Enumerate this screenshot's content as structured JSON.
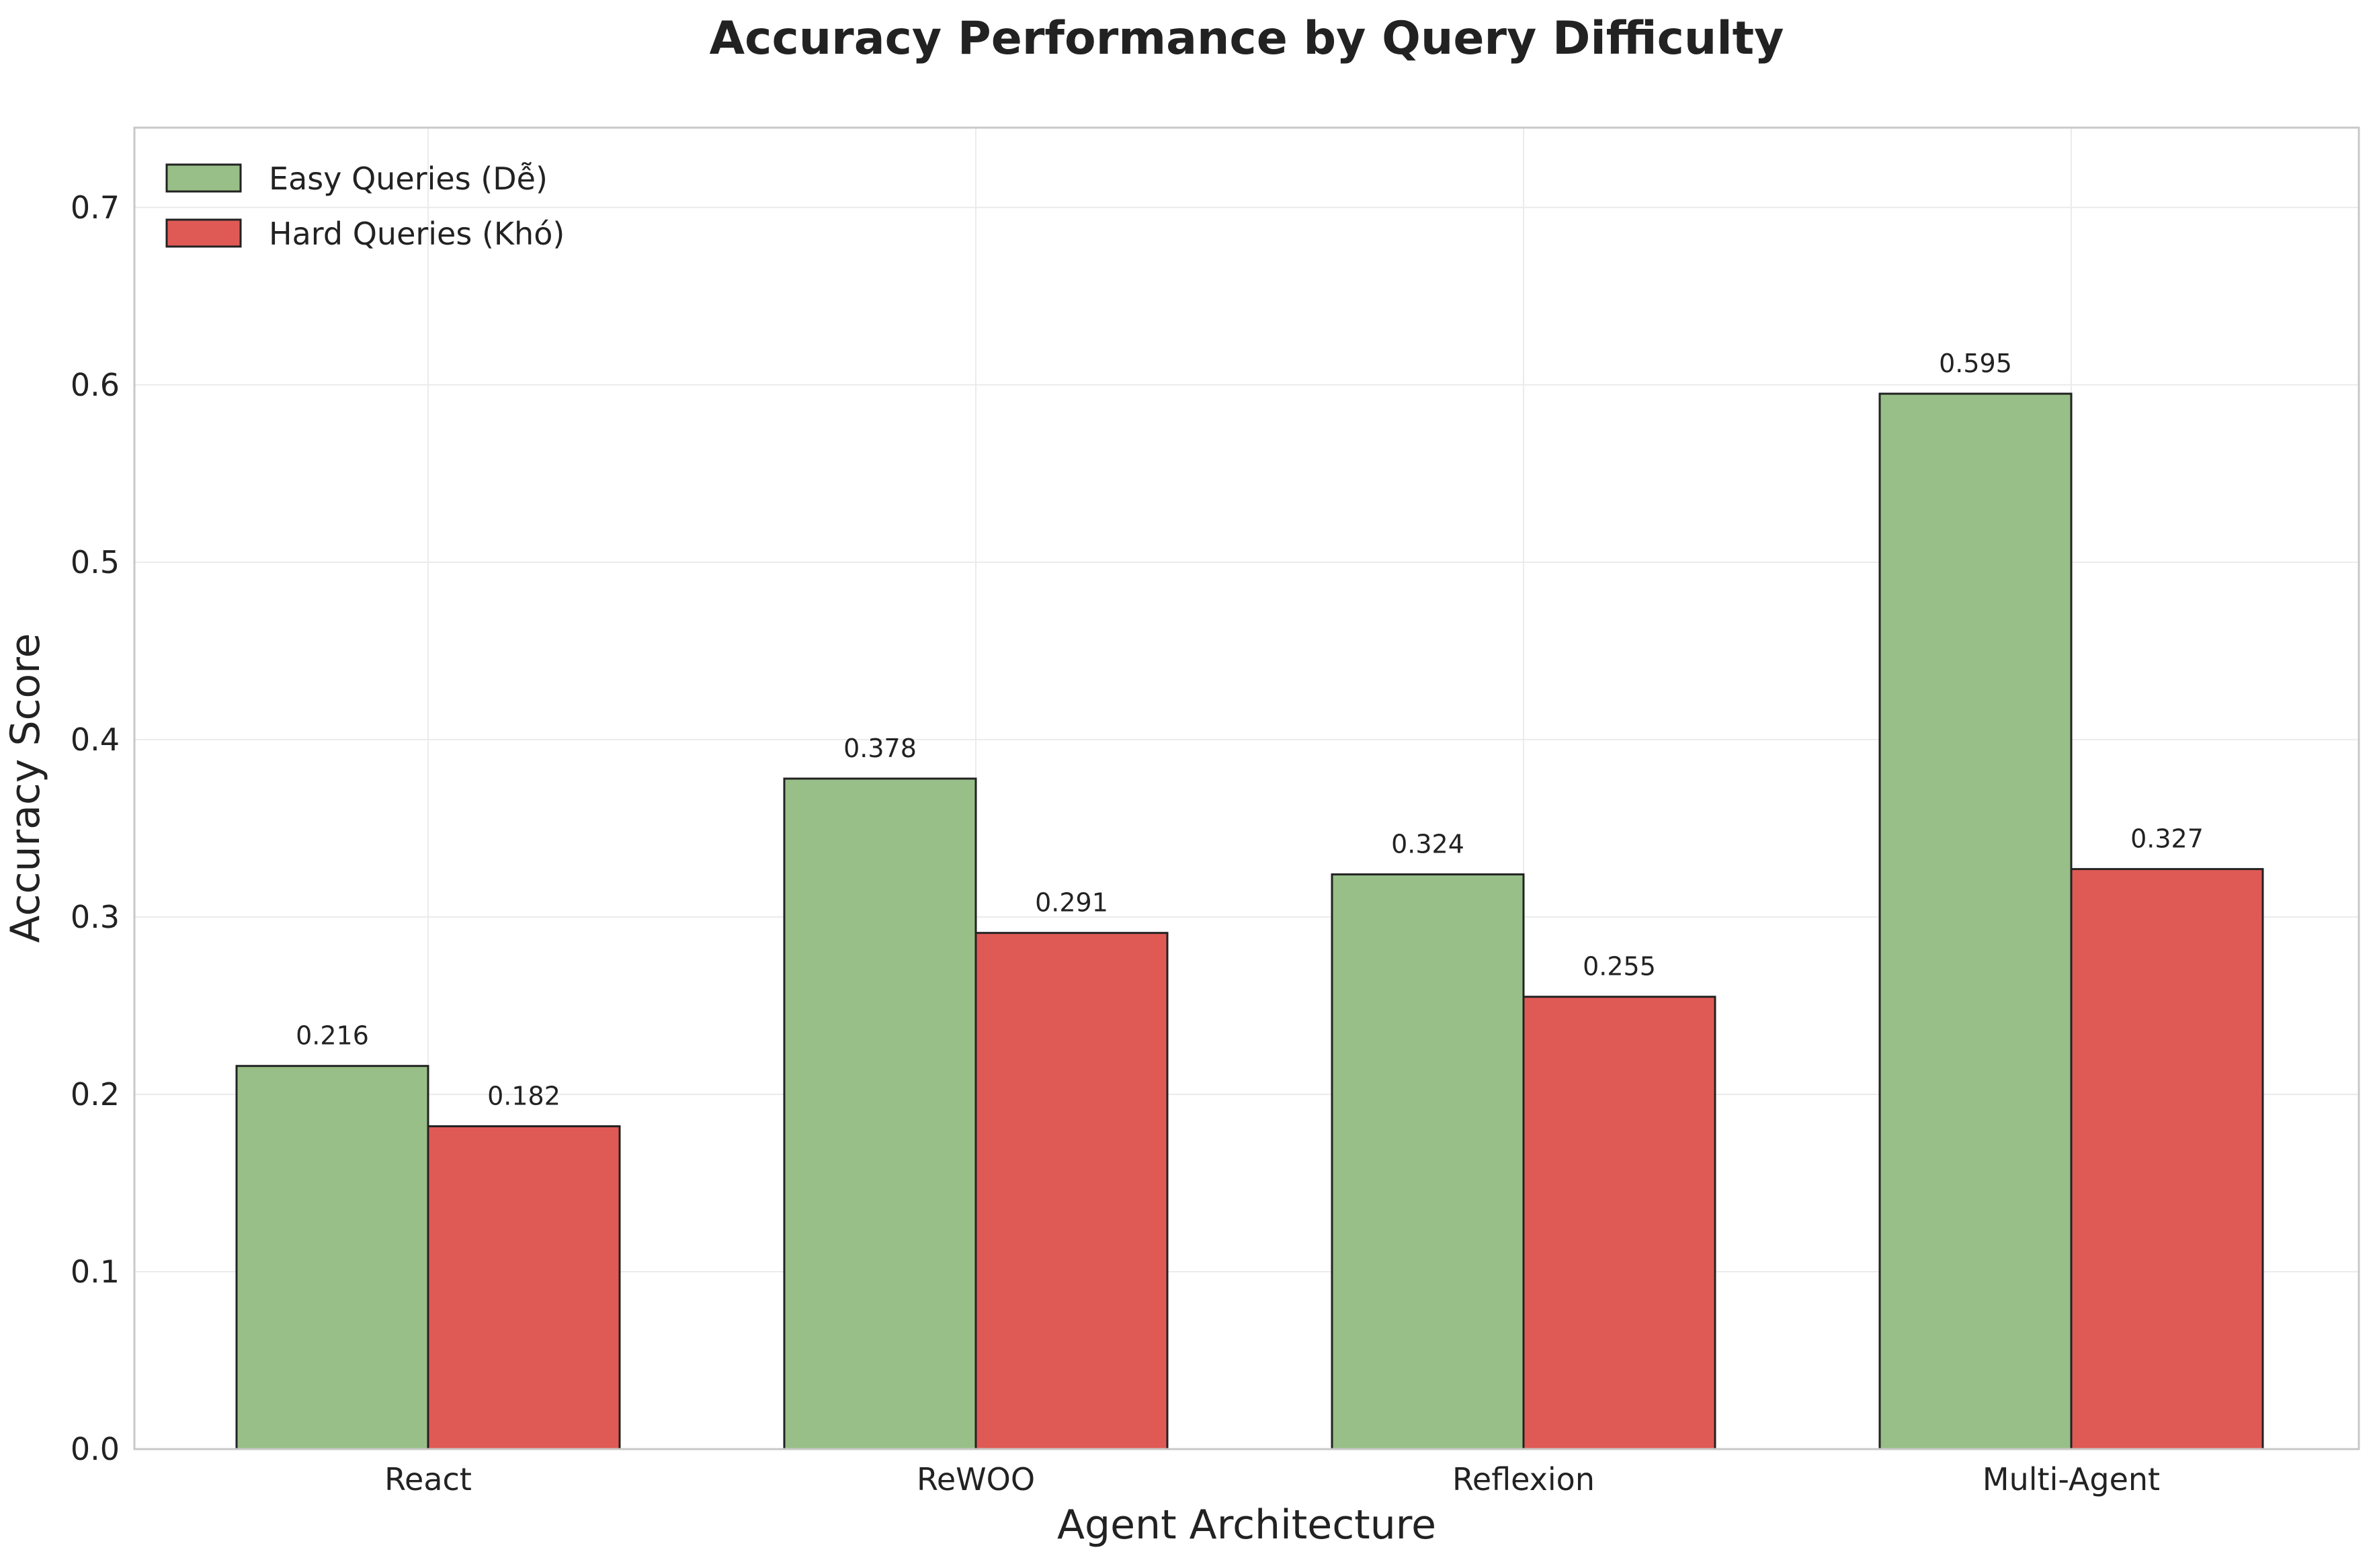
{
  "chart_data": {
    "type": "bar",
    "title": "Accuracy Performance by Query Difficulty",
    "xlabel": "Agent Architecture",
    "ylabel": "Accuracy Score",
    "categories": [
      "React",
      "ReWOO",
      "Reflexion",
      "Multi-Agent"
    ],
    "series": [
      {
        "name": "Easy Queries (Dễ)",
        "color": "#98bf87",
        "values": [
          0.216,
          0.378,
          0.324,
          0.595
        ]
      },
      {
        "name": "Hard Queries (Khó)",
        "color": "#e05a55",
        "values": [
          0.182,
          0.291,
          0.255,
          0.327
        ]
      }
    ],
    "value_labels": [
      [
        "0.216",
        "0.378",
        "0.324",
        "0.595"
      ],
      [
        "0.182",
        "0.291",
        "0.255",
        "0.327"
      ]
    ],
    "ylim": [
      0,
      0.745
    ],
    "yticks": [
      "0.0",
      "0.1",
      "0.2",
      "0.3",
      "0.4",
      "0.5",
      "0.6",
      "0.7"
    ],
    "grid": true,
    "legend_position": "top-left"
  }
}
